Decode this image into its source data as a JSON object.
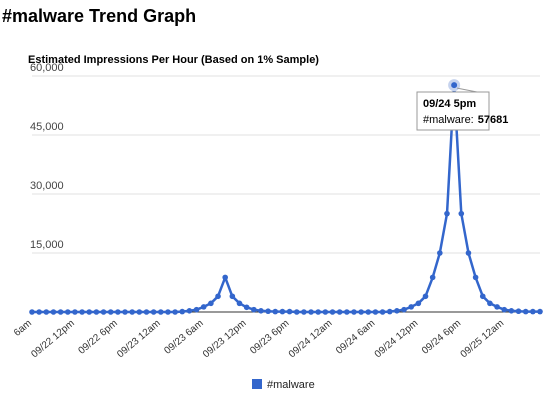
{
  "page": {
    "title": "#malware Trend Graph"
  },
  "colors": {
    "series": "#3366cc",
    "grid": "#e0e0e0",
    "axis": "#333333",
    "tooltip_border": "#999999"
  },
  "chart_data": {
    "type": "line",
    "title": "Estimated Impressions Per Hour (Based on 1% Sample)",
    "xlabel": "",
    "ylabel": "",
    "ylim": [
      0,
      60000
    ],
    "yticks": [
      "15,000",
      "30,000",
      "45,000",
      "60,000"
    ],
    "ytick_values": [
      15000,
      30000,
      45000,
      60000
    ],
    "grid": true,
    "legend": "bottom",
    "x_tick_labels": [
      "6am",
      "09/22 12pm",
      "09/22 6pm",
      "09/23 12am",
      "09/23 6am",
      "09/23 12pm",
      "09/23 6pm",
      "09/24 12am",
      "09/24 6am",
      "09/24 12pm",
      "09/24 6pm",
      "09/25 12am"
    ],
    "x_tick_indices": [
      0,
      6,
      12,
      18,
      24,
      30,
      36,
      42,
      48,
      54,
      60,
      66
    ],
    "series": [
      {
        "name": "#malware",
        "values": [
          0,
          0,
          0,
          0,
          0,
          0,
          0,
          0,
          0,
          0,
          0,
          0,
          0,
          0,
          0,
          0,
          0,
          0,
          0,
          0,
          0,
          100,
          300,
          600,
          1300,
          2200,
          4000,
          8800,
          4000,
          2200,
          1200,
          600,
          300,
          200,
          100,
          100,
          100,
          0,
          0,
          0,
          0,
          0,
          0,
          0,
          0,
          0,
          0,
          0,
          0,
          0,
          100,
          300,
          600,
          1300,
          2200,
          4000,
          8800,
          15000,
          25000,
          57681,
          25000,
          15000,
          8800,
          4000,
          2200,
          1300,
          600,
          300,
          200,
          100,
          100,
          100
        ]
      }
    ],
    "tooltip": {
      "title": "09/24 5pm",
      "series_label": "#malware:",
      "value": "57681",
      "index": 59
    }
  }
}
